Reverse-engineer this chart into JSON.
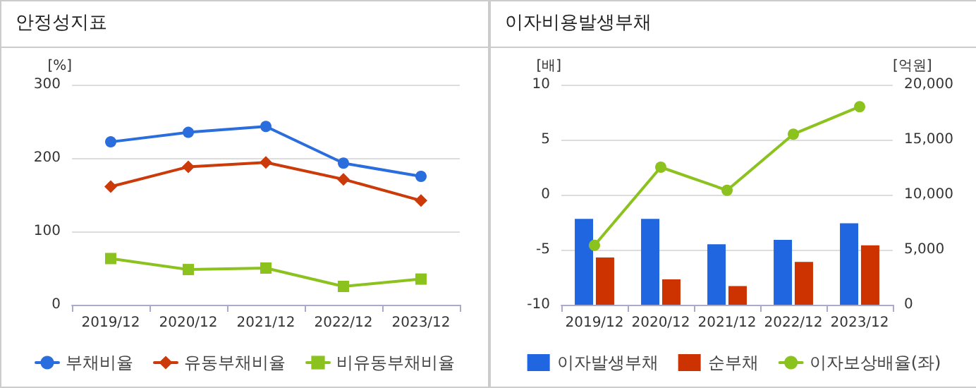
{
  "chart_data": [
    {
      "type": "line",
      "title": "안정성지표",
      "ylabel": "[%]",
      "categories": [
        "2019/12",
        "2020/12",
        "2021/12",
        "2022/12",
        "2023/12"
      ],
      "ylim": [
        0,
        300
      ],
      "yticks": [
        0,
        100,
        200,
        300
      ],
      "grid": "y",
      "legend": "bottom",
      "series": [
        {
          "name": "부채비율",
          "color": "#2a6ddc",
          "marker": "circle",
          "values": [
            222,
            235,
            243,
            193,
            175
          ]
        },
        {
          "name": "유동부채비율",
          "color": "#cc3a0a",
          "marker": "diamond",
          "values": [
            161,
            188,
            194,
            171,
            142
          ]
        },
        {
          "name": "비유동부채비율",
          "color": "#8cc21e",
          "marker": "square",
          "values": [
            63,
            48,
            50,
            25,
            35
          ]
        }
      ]
    },
    {
      "type": "bar",
      "title": "이자비용발생부채",
      "ylabel": "[배]",
      "y2label": "[억원]",
      "categories": [
        "2019/12",
        "2020/12",
        "2021/12",
        "2022/12",
        "2023/12"
      ],
      "ylim": [
        -10,
        10
      ],
      "yticks": [
        -10,
        -5,
        0,
        5,
        10
      ],
      "y2lim": [
        0,
        20000
      ],
      "y2ticks": [
        0,
        {
          "value": 5000,
          "label": "5,000"
        },
        {
          "value": 10000,
          "label": "10,000"
        },
        {
          "value": 15000,
          "label": "15,000"
        },
        {
          "value": 20000,
          "label": "20,000"
        }
      ],
      "grid": "y",
      "legend": "bottom",
      "series": [
        {
          "name": "이자발생부채",
          "axis": "y2",
          "color": "#1f66e0",
          "values": [
            7800,
            7800,
            5500,
            5900,
            7400
          ]
        },
        {
          "name": "순부채",
          "axis": "y2",
          "color": "#cc3300",
          "values": [
            4300,
            2300,
            1700,
            3900,
            5400
          ]
        },
        {
          "name": "이자보상배율(좌)",
          "type": "line",
          "axis": "y",
          "color": "#8cc21e",
          "marker": "circle",
          "values": [
            -4.6,
            2.5,
            0.4,
            5.5,
            8.0
          ]
        }
      ]
    }
  ]
}
